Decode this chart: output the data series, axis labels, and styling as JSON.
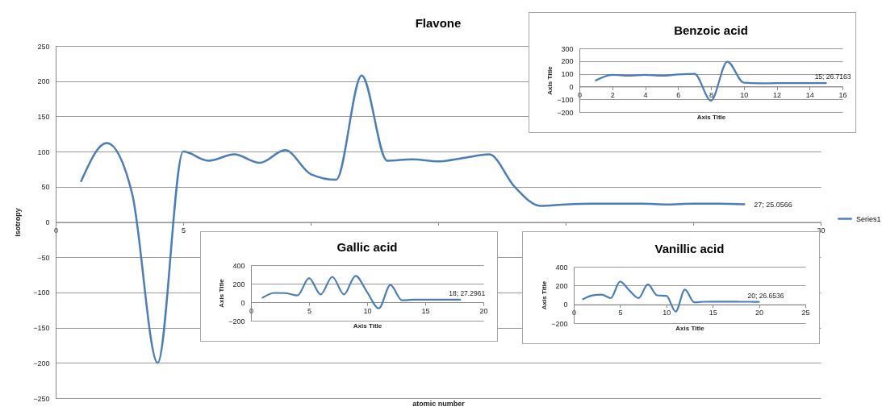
{
  "chart_data": [
    {
      "type": "line",
      "title": "Flavone",
      "xlabel": "atomic number",
      "ylabel": "Isotropy",
      "x": [
        1,
        2,
        3,
        4,
        5,
        6,
        7,
        8,
        9,
        10,
        11,
        12,
        13,
        14,
        15,
        16,
        17,
        18,
        19,
        20,
        21,
        22,
        23,
        24,
        25,
        26,
        27
      ],
      "series": [
        {
          "name": "Series1",
          "color": "#4a7ebb",
          "values": [
            58,
            112,
            40,
            -200,
            100,
            87,
            96,
            84,
            102,
            68,
            60,
            208,
            87,
            89,
            86,
            91,
            96,
            50,
            23,
            25,
            26,
            26,
            26,
            25,
            26,
            26,
            25.0566
          ]
        }
      ],
      "xlim": [
        0,
        30
      ],
      "xticks": [
        0,
        5,
        {
          "value": 10,
          "label": null
        },
        {
          "value": 15,
          "label": null
        },
        {
          "value": 20,
          "label": null
        },
        {
          "value": 25,
          "label": null
        },
        30
      ],
      "ylim": [
        -250,
        250
      ],
      "yticks": [
        -250,
        -200,
        -150,
        -100,
        -50,
        0,
        50,
        100,
        150,
        200,
        250
      ],
      "grid": "y",
      "legend": "right",
      "annotations": [
        {
          "text": "27; 25.0566",
          "x": 27,
          "y": 25.0566
        }
      ]
    },
    {
      "type": "line",
      "title": "Benzoic acid",
      "xlabel": "Axis Title",
      "ylabel": "Axis Title",
      "x": [
        1,
        2,
        3,
        4,
        5,
        6,
        7,
        8,
        9,
        10,
        11,
        12,
        13,
        14,
        15
      ],
      "series": [
        {
          "color": "#4a7ebb",
          "values": [
            48,
            92,
            85,
            92,
            85,
            95,
            100,
            -110,
            195,
            30,
            25,
            27,
            27,
            27,
            26.7163
          ]
        }
      ],
      "xlim": [
        0,
        16
      ],
      "xticks": [
        0,
        2,
        4,
        6,
        8,
        10,
        12,
        14,
        16
      ],
      "ylim": [
        -200,
        300
      ],
      "yticks": [
        -200,
        -100,
        0,
        100,
        200,
        300
      ],
      "grid": "y",
      "annotations": [
        {
          "text": "15; 26.7163",
          "x": 15,
          "y": 26.7163
        }
      ]
    },
    {
      "type": "line",
      "title": "Gallic acid",
      "xlabel": "Axis Title",
      "ylabel": "Axis Title",
      "x": [
        1,
        2,
        3,
        4,
        5,
        6,
        7,
        8,
        9,
        10,
        11,
        12,
        13,
        14,
        15,
        16,
        17,
        18
      ],
      "series": [
        {
          "color": "#4a7ebb",
          "values": [
            49,
            100,
            98,
            72,
            260,
            84,
            274,
            84,
            284,
            108,
            -66,
            186,
            20,
            27,
            27,
            28,
            27,
            27.2961
          ]
        }
      ],
      "xlim": [
        0,
        20
      ],
      "xticks": [
        0,
        5,
        10,
        15,
        20
      ],
      "ylim": [
        -200,
        400
      ],
      "yticks": [
        -200,
        0,
        200,
        400
      ],
      "grid": "y",
      "annotations": [
        {
          "text": "18; 27.2961",
          "x": 18,
          "y": 27.2961
        }
      ]
    },
    {
      "type": "line",
      "title": "Vanillic acid",
      "xlabel": "Axis Title",
      "ylabel": "Axis Title",
      "x": [
        1,
        2,
        3,
        4,
        5,
        6,
        7,
        8,
        9,
        10,
        11,
        12,
        13,
        14,
        15,
        16,
        17,
        18,
        19,
        20
      ],
      "series": [
        {
          "color": "#4a7ebb",
          "values": [
            55,
            95,
            104,
            67,
            243,
            148,
            67,
            212,
            96,
            90,
            -78,
            157,
            22,
            27,
            28,
            28,
            28,
            27,
            27,
            26.6536
          ]
        }
      ],
      "xlim": [
        0,
        25
      ],
      "xticks": [
        0,
        5,
        10,
        15,
        20,
        25
      ],
      "ylim": [
        -200,
        400
      ],
      "yticks": [
        -200,
        0,
        200,
        400
      ],
      "grid": "y",
      "annotations": [
        {
          "text": "20; 26.6536",
          "x": 20,
          "y": 26.6536
        }
      ]
    }
  ]
}
